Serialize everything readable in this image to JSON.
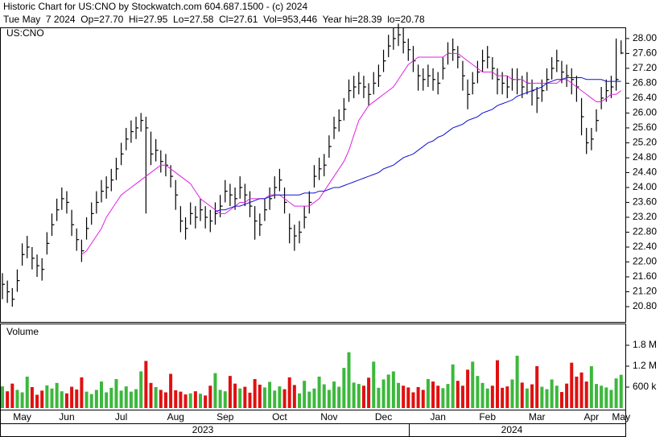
{
  "header": {
    "title": "Historic Chart for US:CNO by Stockwatch.com 604.687.1500 - (c) 2024",
    "subtitle": "Tue May  7 2024  Op=27.70  Hi=27.95  Lo=27.58  Cl=27.61  Vol=953,446  Year hi=28.39  lo=20.78"
  },
  "chart_data": [
    {
      "type": "hlc",
      "legend": "US:CNO",
      "bar_color": "#000000",
      "categories": [
        null,
        null,
        null,
        null,
        "May",
        null,
        null,
        null,
        null,
        null,
        null,
        null,
        null,
        "Jun",
        null,
        null,
        null,
        null,
        null,
        null,
        null,
        null,
        null,
        null,
        "Jul",
        null,
        null,
        null,
        null,
        null,
        null,
        null,
        null,
        null,
        null,
        "Aug",
        null,
        null,
        null,
        null,
        null,
        null,
        null,
        null,
        null,
        "Sep",
        null,
        null,
        null,
        null,
        null,
        null,
        null,
        null,
        null,
        null,
        "Oct",
        null,
        null,
        null,
        null,
        null,
        null,
        null,
        null,
        null,
        "Nov",
        null,
        null,
        null,
        null,
        null,
        null,
        null,
        null,
        null,
        null,
        "Dec",
        null,
        null,
        null,
        null,
        null,
        null,
        null,
        null,
        null,
        null,
        "Jan",
        null,
        null,
        null,
        null,
        null,
        null,
        null,
        null,
        null,
        "Feb",
        null,
        null,
        null,
        null,
        null,
        null,
        null,
        null,
        null,
        "Mar",
        null,
        null,
        null,
        null,
        null,
        null,
        null,
        null,
        null,
        null,
        "Apr",
        null,
        null,
        null,
        null,
        null,
        "May"
      ],
      "years": [
        "2023",
        "2024"
      ],
      "high": [
        21.7,
        21.5,
        21.3,
        21.8,
        22.5,
        22.7,
        22.4,
        22.2,
        22.1,
        22.8,
        23.3,
        23.7,
        24.0,
        23.9,
        23.4,
        22.9,
        22.6,
        23.2,
        23.6,
        23.9,
        24.2,
        24.3,
        24.5,
        24.8,
        25.2,
        25.6,
        25.8,
        25.9,
        26.0,
        25.9,
        25.5,
        25.3,
        25.0,
        24.9,
        24.6,
        24.2,
        23.5,
        23.2,
        23.6,
        23.5,
        23.7,
        23.5,
        23.4,
        23.6,
        23.8,
        24.2,
        24.1,
        24.0,
        24.3,
        24.1,
        23.9,
        23.5,
        23.3,
        23.7,
        24.0,
        24.3,
        24.5,
        24.0,
        23.3,
        23.0,
        23.1,
        23.5,
        23.9,
        24.6,
        24.8,
        24.9,
        25.4,
        25.9,
        26.1,
        26.4,
        26.9,
        27.0,
        27.1,
        27.0,
        26.8,
        27.1,
        27.3,
        27.7,
        28.1,
        28.3,
        28.4,
        28.3,
        28.0,
        27.8,
        27.3,
        27.2,
        27.3,
        27.2,
        27.1,
        27.5,
        27.9,
        28.0,
        27.8,
        27.4,
        26.9,
        27.1,
        27.4,
        27.7,
        27.8,
        27.5,
        27.2,
        27.1,
        27.0,
        27.2,
        27.2,
        27.0,
        27.1,
        26.9,
        26.7,
        26.9,
        27.2,
        27.5,
        27.7,
        27.4,
        27.3,
        27.2,
        27.0,
        26.4,
        25.6,
        25.6,
        26.1,
        26.7,
        26.9,
        27.0,
        28.0,
        27.95
      ],
      "low": [
        21.0,
        20.9,
        20.8,
        21.2,
        21.9,
        22.1,
        21.8,
        21.6,
        21.5,
        22.2,
        22.7,
        23.1,
        23.4,
        23.3,
        22.7,
        22.3,
        22.0,
        22.6,
        23.0,
        23.3,
        23.6,
        23.7,
        23.9,
        24.2,
        24.6,
        25.0,
        25.2,
        25.3,
        25.5,
        23.3,
        24.6,
        24.7,
        24.4,
        24.3,
        24.0,
        23.4,
        22.8,
        22.6,
        23.0,
        22.9,
        23.1,
        22.9,
        22.8,
        23.0,
        23.2,
        23.6,
        23.5,
        23.4,
        23.7,
        23.5,
        23.2,
        22.6,
        22.7,
        23.1,
        23.4,
        23.7,
        23.9,
        23.3,
        22.5,
        22.3,
        22.5,
        22.9,
        23.3,
        24.0,
        24.2,
        24.3,
        24.8,
        25.3,
        25.5,
        25.8,
        26.3,
        26.4,
        26.5,
        26.4,
        26.2,
        26.5,
        26.7,
        27.1,
        27.5,
        27.7,
        27.8,
        27.6,
        27.4,
        27.1,
        26.6,
        26.6,
        26.7,
        26.6,
        26.5,
        26.9,
        27.3,
        27.4,
        27.2,
        26.6,
        26.1,
        26.5,
        26.8,
        27.1,
        27.2,
        26.9,
        26.5,
        26.5,
        26.4,
        26.6,
        26.5,
        26.4,
        26.5,
        26.2,
        26.0,
        26.3,
        26.6,
        26.9,
        27.1,
        26.8,
        26.7,
        26.5,
        26.3,
        25.4,
        24.9,
        25.0,
        25.5,
        26.1,
        26.3,
        26.4,
        26.6,
        27.58
      ],
      "close": [
        21.4,
        21.2,
        21.0,
        21.5,
        22.2,
        22.4,
        22.1,
        21.9,
        21.8,
        22.5,
        23.0,
        23.4,
        23.7,
        23.6,
        23.0,
        22.6,
        22.3,
        22.9,
        23.3,
        23.6,
        23.9,
        24.0,
        24.2,
        24.5,
        24.9,
        25.3,
        25.5,
        25.6,
        25.8,
        25.6,
        24.9,
        25.0,
        24.7,
        24.6,
        24.3,
        23.8,
        23.1,
        22.9,
        23.3,
        23.2,
        23.4,
        23.2,
        23.1,
        23.3,
        23.5,
        23.9,
        23.8,
        23.7,
        24.0,
        23.8,
        23.5,
        23.1,
        23.0,
        23.4,
        23.7,
        24.0,
        24.2,
        23.6,
        22.9,
        22.7,
        22.8,
        23.2,
        23.6,
        24.3,
        24.5,
        24.6,
        25.1,
        25.6,
        25.8,
        26.1,
        26.6,
        26.7,
        26.8,
        26.7,
        26.5,
        26.8,
        27.0,
        27.4,
        27.8,
        28.0,
        28.1,
        27.9,
        27.7,
        27.4,
        27.0,
        26.9,
        27.0,
        26.9,
        26.8,
        27.2,
        27.6,
        27.7,
        27.5,
        27.0,
        26.5,
        26.8,
        27.1,
        27.4,
        27.5,
        27.2,
        26.9,
        26.8,
        26.7,
        26.9,
        26.9,
        26.7,
        26.8,
        26.6,
        26.4,
        26.6,
        26.9,
        27.2,
        27.4,
        27.1,
        27.0,
        26.9,
        26.7,
        25.9,
        25.2,
        25.3,
        25.8,
        26.4,
        26.6,
        26.7,
        26.9,
        27.61
      ],
      "moving_averages": [
        {
          "color": "#e020e0",
          "values": [
            null,
            null,
            null,
            null,
            null,
            null,
            null,
            null,
            null,
            null,
            null,
            null,
            null,
            null,
            null,
            null,
            22.2,
            22.3,
            22.5,
            22.7,
            22.9,
            23.2,
            23.4,
            23.6,
            23.8,
            23.9,
            24.0,
            24.1,
            24.2,
            24.3,
            24.4,
            24.5,
            24.6,
            24.6,
            24.5,
            24.4,
            24.3,
            24.2,
            24.1,
            23.9,
            23.7,
            23.6,
            23.5,
            23.4,
            23.3,
            23.3,
            23.4,
            23.5,
            23.6,
            23.6,
            23.7,
            23.7,
            23.7,
            23.7,
            23.8,
            23.8,
            23.8,
            23.7,
            23.6,
            23.5,
            23.5,
            23.5,
            23.5,
            23.6,
            23.7,
            23.9,
            24.1,
            24.3,
            24.5,
            24.7,
            25.0,
            25.4,
            25.8,
            26.0,
            26.2,
            26.3,
            26.4,
            26.5,
            26.6,
            26.7,
            26.9,
            27.1,
            27.3,
            27.4,
            27.5,
            27.5,
            27.5,
            27.5,
            27.5,
            27.5,
            27.6,
            27.6,
            27.6,
            27.5,
            27.4,
            27.3,
            27.2,
            27.1,
            27.1,
            27.1,
            27.0,
            27.0,
            27.0,
            26.9,
            26.9,
            26.9,
            26.8,
            26.8,
            26.8,
            26.8,
            26.8,
            26.8,
            26.8,
            26.9,
            26.9,
            26.8,
            26.7,
            26.6,
            26.5,
            26.4,
            26.3,
            26.3,
            26.4,
            26.5,
            26.5,
            26.6
          ]
        },
        {
          "color": "#1010d0",
          "values": [
            null,
            null,
            null,
            null,
            null,
            null,
            null,
            null,
            null,
            null,
            null,
            null,
            null,
            null,
            null,
            null,
            null,
            null,
            null,
            null,
            null,
            null,
            null,
            null,
            null,
            null,
            null,
            null,
            null,
            null,
            null,
            null,
            null,
            null,
            null,
            null,
            null,
            null,
            null,
            null,
            null,
            null,
            null,
            23.35,
            23.4,
            23.4,
            23.45,
            23.5,
            23.5,
            23.55,
            23.6,
            23.65,
            23.7,
            23.7,
            23.75,
            23.8,
            23.8,
            23.8,
            23.8,
            23.8,
            23.8,
            23.85,
            23.85,
            23.85,
            23.9,
            23.9,
            23.95,
            24.0,
            24.0,
            24.05,
            24.1,
            24.15,
            24.2,
            24.25,
            24.3,
            24.35,
            24.4,
            24.5,
            24.55,
            24.6,
            24.7,
            24.8,
            24.85,
            24.9,
            25.0,
            25.1,
            25.2,
            25.25,
            25.35,
            25.4,
            25.5,
            25.6,
            25.65,
            25.7,
            25.8,
            25.85,
            25.9,
            26.0,
            26.05,
            26.1,
            26.2,
            26.25,
            26.3,
            26.35,
            26.45,
            26.5,
            26.55,
            26.6,
            26.65,
            26.7,
            26.8,
            26.85,
            26.9,
            26.9,
            26.95,
            26.95,
            26.95,
            26.95,
            26.9,
            26.9,
            26.9,
            26.9,
            26.85,
            26.85,
            26.85,
            26.85
          ]
        }
      ],
      "ylim": [
        20.39,
        28.3
      ],
      "yticks": [
        {
          "value": 20.8,
          "label": "20.80"
        },
        {
          "value": 21.2,
          "label": "21.20"
        },
        {
          "value": 21.6,
          "label": "21.60"
        },
        {
          "value": 22,
          "label": "22.00"
        },
        {
          "value": 22.4,
          "label": "22.40"
        },
        {
          "value": 22.8,
          "label": "22.80"
        },
        {
          "value": 23.2,
          "label": "23.20"
        },
        {
          "value": 23.6,
          "label": "23.60"
        },
        {
          "value": 24,
          "label": "24.00"
        },
        {
          "value": 24.4,
          "label": "24.40"
        },
        {
          "value": 24.8,
          "label": "24.80"
        },
        {
          "value": 25.2,
          "label": "25.20"
        },
        {
          "value": 25.6,
          "label": "25.60"
        },
        {
          "value": 26,
          "label": "26.00"
        },
        {
          "value": 26.4,
          "label": "26.40"
        },
        {
          "value": 26.8,
          "label": "26.80"
        },
        {
          "value": 27.2,
          "label": "27.20"
        },
        {
          "value": 27.6,
          "label": "27.60"
        },
        {
          "value": 28,
          "label": "28.00"
        }
      ]
    },
    {
      "type": "volume",
      "title": "Volume",
      "up_color": "#3cb83c",
      "down_color": "#e01010",
      "values": [
        620000,
        480000,
        700000,
        520000,
        450000,
        900000,
        600000,
        380000,
        500000,
        650000,
        560000,
        720000,
        480000,
        420000,
        610000,
        530000,
        880000,
        470000,
        400000,
        520000,
        760000,
        450000,
        580000,
        830000,
        500000,
        620000,
        470000,
        540000,
        1050000,
        1350000,
        720000,
        600000,
        520000,
        450000,
        980000,
        510000,
        470000,
        390000,
        420000,
        480000,
        410000,
        360000,
        640000,
        1000000,
        520000,
        480000,
        920000,
        700000,
        560000,
        610000,
        440000,
        830000,
        670000,
        590000,
        750000,
        500000,
        620000,
        540000,
        880000,
        660000,
        420000,
        780000,
        470000,
        560000,
        900000,
        680000,
        520000,
        760000,
        610000,
        1150000,
        1600000,
        730000,
        690000,
        640000,
        870000,
        1330000,
        580000,
        820000,
        960000,
        1050000,
        720000,
        640000,
        590000,
        450000,
        600000,
        520000,
        830000,
        760000,
        640000,
        570000,
        690000,
        1250000,
        780000,
        640000,
        1100000,
        1330000,
        920000,
        720000,
        560000,
        640000,
        1370000,
        580000,
        620000,
        820000,
        1500000,
        730000,
        560000,
        680000,
        1200000,
        610000,
        540000,
        820000,
        640000,
        460000,
        700000,
        1300000,
        900000,
        1020000,
        760000,
        1200000,
        690000,
        640000,
        590000,
        520000,
        850000,
        953446
      ],
      "ylim": [
        0,
        2400000
      ],
      "yticks": [
        {
          "value": 600000,
          "label": "600 k"
        },
        {
          "value": 1200000,
          "label": "1.2 M"
        },
        {
          "value": 1800000,
          "label": "1.8 M"
        }
      ]
    }
  ]
}
